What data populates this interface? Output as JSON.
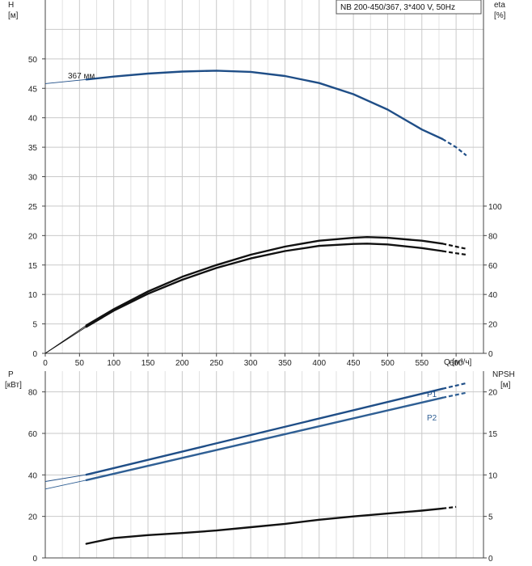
{
  "legend": "NB 200-450/367, 3*400 V, 50Hz",
  "chart_data": [
    {
      "type": "line",
      "panel": "head-efficiency",
      "x_axis": {
        "label": "Q [м³/ч]",
        "range": [
          0,
          640
        ],
        "ticks": [
          "0",
          "50",
          "100",
          "150",
          "200",
          "250",
          "300",
          "350",
          "400",
          "450",
          "500",
          "550",
          "600"
        ]
      },
      "y_left": {
        "label_top": "H",
        "label_unit": "[м]",
        "range": [
          0,
          60
        ],
        "ticks": [
          "0",
          "5",
          "10",
          "15",
          "20",
          "25",
          "30",
          "35",
          "40",
          "45",
          "50"
        ]
      },
      "y_right": {
        "label_top": "eta",
        "label_unit": "[%]",
        "range": [
          0,
          240
        ],
        "ticks": [
          "0",
          "20",
          "40",
          "60",
          "80",
          "100"
        ]
      },
      "grid": true,
      "legend_position": "top-right",
      "series": [
        {
          "name": "367 мм",
          "axis": "left",
          "color": "#1f4e87",
          "x": [
            0,
            60,
            100,
            150,
            200,
            250,
            300,
            350,
            400,
            450,
            500,
            550,
            580
          ],
          "y": [
            45.8,
            46.5,
            47.0,
            47.5,
            47.85,
            48.0,
            47.8,
            47.1,
            45.9,
            44.0,
            41.4,
            38.0,
            36.4
          ],
          "extension": {
            "x": [
              580,
              600,
              615
            ],
            "y": [
              36.4,
              35.0,
              33.6
            ]
          }
        },
        {
          "name": "",
          "axis": "right",
          "color": "#111111",
          "x": [
            0,
            60,
            100,
            150,
            200,
            250,
            300,
            350,
            400,
            450,
            470,
            500,
            550,
            580
          ],
          "y": [
            0,
            19,
            30,
            42,
            52,
            60,
            67,
            72.5,
            76.5,
            78.5,
            79,
            78.5,
            76.5,
            74.5
          ],
          "extension": {
            "x": [
              580,
              600,
              615
            ],
            "y": [
              74.5,
              72.5,
              71
            ]
          }
        },
        {
          "name": "",
          "axis": "right",
          "color": "#111111",
          "x": [
            0,
            60,
            100,
            150,
            200,
            250,
            300,
            350,
            400,
            450,
            470,
            500,
            550,
            580
          ],
          "y": [
            0,
            18,
            29,
            40.5,
            50,
            58,
            64.5,
            69.5,
            73,
            74.3,
            74.5,
            74,
            71.5,
            69.5
          ],
          "extension": {
            "x": [
              580,
              600,
              615
            ],
            "y": [
              69.5,
              68,
              67
            ]
          }
        }
      ]
    },
    {
      "type": "line",
      "panel": "power-npsh",
      "x_axis": {
        "range": [
          0,
          640
        ]
      },
      "y_left": {
        "label_top": "P",
        "label_unit": "[кВт]",
        "range": [
          0,
          90
        ],
        "ticks": [
          "0",
          "20",
          "40",
          "60",
          "80"
        ]
      },
      "y_right": {
        "label_top": "NPSH",
        "label_unit": "[м]",
        "range": [
          0,
          22.5
        ],
        "ticks": [
          "0",
          "5",
          "10",
          "15",
          "20"
        ]
      },
      "grid": true,
      "series": [
        {
          "name": "P1",
          "axis": "left",
          "color": "#1f4e87",
          "x": [
            0,
            60,
            580
          ],
          "y": [
            36.8,
            40.1,
            81.5
          ],
          "extension": {
            "x": [
              580,
              615
            ],
            "y": [
              81.5,
              84.2
            ]
          }
        },
        {
          "name": "P2",
          "axis": "left",
          "color": "#2f5f94",
          "x": [
            0,
            60,
            580
          ],
          "y": [
            33.2,
            37.5,
            77.2
          ],
          "extension": {
            "x": [
              580,
              615
            ],
            "y": [
              77.2,
              79.6
            ]
          }
        },
        {
          "name": "",
          "axis": "right",
          "color": "#111111",
          "x": [
            60,
            100,
            150,
            200,
            250,
            300,
            350,
            400,
            450,
            500,
            550,
            580
          ],
          "y": [
            1.7,
            2.4,
            2.75,
            3.0,
            3.3,
            3.7,
            4.1,
            4.6,
            5.0,
            5.35,
            5.7,
            5.95
          ],
          "extension": {
            "x": [
              580,
              600
            ],
            "y": [
              5.95,
              6.15
            ]
          }
        }
      ]
    }
  ]
}
